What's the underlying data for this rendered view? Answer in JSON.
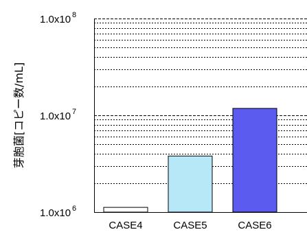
{
  "chart_data": {
    "type": "bar",
    "ylabel": "芽胞菌[コピー数/mL]",
    "yscale": "log",
    "ylim": [
      1000000,
      100000000
    ],
    "yticks": [
      {
        "value": 1000000,
        "mantissa": "1.0x10",
        "exponent": "6"
      },
      {
        "value": 10000000,
        "mantissa": "1.0x10",
        "exponent": "7"
      },
      {
        "value": 100000000,
        "mantissa": "1.0x10",
        "exponent": "8"
      }
    ],
    "grid": true,
    "categories": [
      "CASE4",
      "CASE5",
      "CASE6"
    ],
    "values": [
      1120000,
      3800000,
      11800000
    ],
    "colors": [
      "#ffffff",
      "#b7e8f8",
      "#5b5bef"
    ]
  }
}
